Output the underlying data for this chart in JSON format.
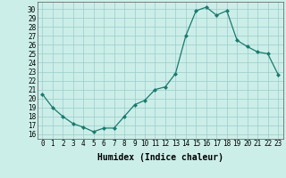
{
  "x": [
    0,
    1,
    2,
    3,
    4,
    5,
    6,
    7,
    8,
    9,
    10,
    11,
    12,
    13,
    14,
    15,
    16,
    17,
    18,
    19,
    20,
    21,
    22,
    23
  ],
  "y": [
    20.5,
    19.0,
    18.0,
    17.2,
    16.8,
    16.3,
    16.7,
    16.7,
    18.0,
    19.3,
    19.8,
    21.0,
    21.3,
    22.8,
    27.0,
    29.8,
    30.2,
    29.3,
    29.8,
    26.5,
    25.8,
    25.2,
    25.0,
    22.7
  ],
  "line_color": "#1a7a6e",
  "marker": "D",
  "marker_size": 2.0,
  "background_color": "#cceee8",
  "grid_color": "#99cccc",
  "xlabel": "Humidex (Indice chaleur)",
  "ylabel": "",
  "xlim": [
    -0.5,
    23.5
  ],
  "ylim": [
    15.5,
    30.8
  ],
  "yticks": [
    16,
    17,
    18,
    19,
    20,
    21,
    22,
    23,
    24,
    25,
    26,
    27,
    28,
    29,
    30
  ],
  "xticks": [
    0,
    1,
    2,
    3,
    4,
    5,
    6,
    7,
    8,
    9,
    10,
    11,
    12,
    13,
    14,
    15,
    16,
    17,
    18,
    19,
    20,
    21,
    22,
    23
  ],
  "tick_fontsize": 5.5,
  "label_fontsize": 7.0
}
